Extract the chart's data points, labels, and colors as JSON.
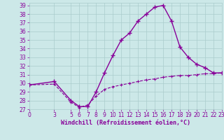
{
  "xlabel": "Windchill (Refroidissement éolien,°C)",
  "ylabel": "",
  "background_color": "#cce8e8",
  "grid_color": "#aacccc",
  "line_color": "#880099",
  "xlim": [
    0,
    23
  ],
  "ylim": [
    27,
    39.3
  ],
  "xticks": [
    0,
    3,
    5,
    6,
    7,
    8,
    9,
    10,
    11,
    12,
    13,
    14,
    15,
    16,
    17,
    18,
    19,
    20,
    21,
    22,
    23
  ],
  "yticks": [
    27,
    28,
    29,
    30,
    31,
    32,
    33,
    34,
    35,
    36,
    37,
    38,
    39
  ],
  "line1_x": [
    0,
    3,
    5,
    6,
    7,
    8,
    9,
    10,
    11,
    12,
    13,
    14,
    15,
    16,
    17,
    18,
    19,
    20,
    21,
    22,
    23
  ],
  "line1_y": [
    29.8,
    30.2,
    28.0,
    27.3,
    27.3,
    29.0,
    31.2,
    33.2,
    35.0,
    35.8,
    37.2,
    38.0,
    38.8,
    39.0,
    37.2,
    34.2,
    33.0,
    32.2,
    31.8,
    31.2,
    31.2
  ],
  "line2_x": [
    0,
    3,
    5,
    6,
    7,
    8,
    9,
    10,
    11,
    12,
    13,
    14,
    15,
    16,
    17,
    18,
    19,
    20,
    21,
    22,
    23
  ],
  "line2_y": [
    29.8,
    29.9,
    27.8,
    27.2,
    27.5,
    28.5,
    29.3,
    29.6,
    29.8,
    30.0,
    30.2,
    30.4,
    30.5,
    30.7,
    30.8,
    30.9,
    30.9,
    31.0,
    31.1,
    31.1,
    31.2
  ],
  "tick_fontsize": 5.5,
  "xlabel_fontsize": 6.0
}
